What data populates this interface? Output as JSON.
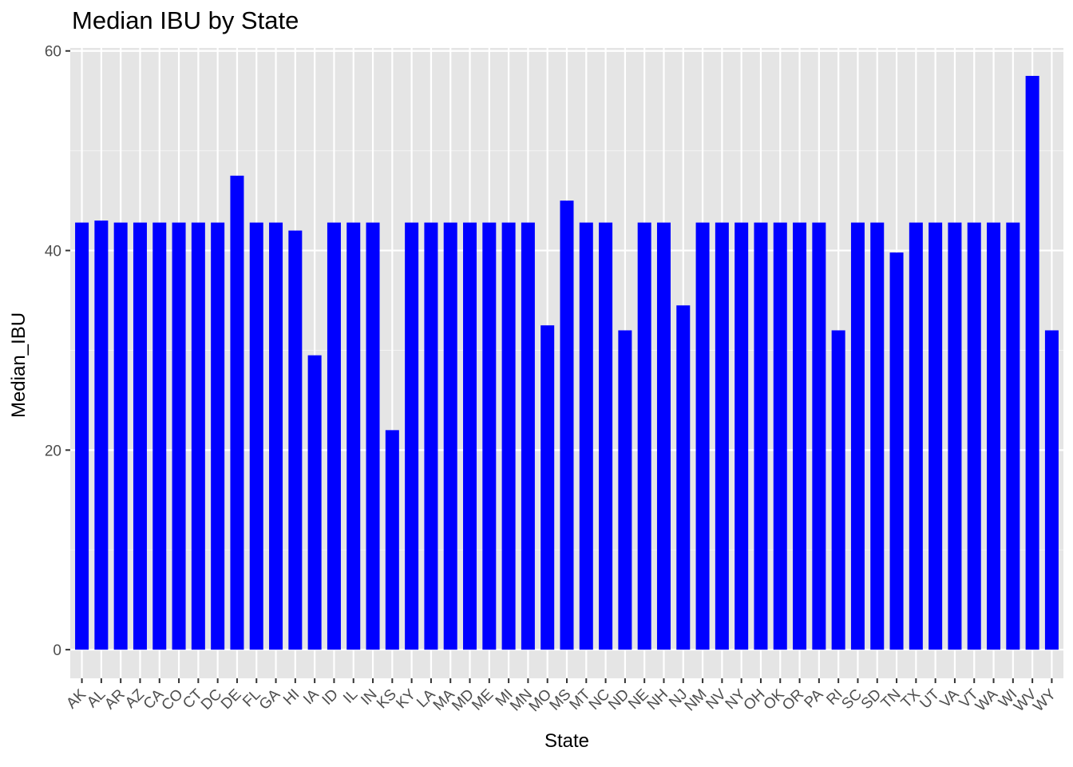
{
  "chart_data": {
    "type": "bar",
    "title": "Median IBU by State",
    "xlabel": "State",
    "ylabel": "Median_IBU",
    "ylim": [
      -2.87,
      60.3
    ],
    "yticks": [
      0,
      20,
      40,
      60
    ],
    "grid": true,
    "bar_color": "#0000FF",
    "panel_bg": "#E5E5E5",
    "categories": [
      "AK",
      "AL",
      "AR",
      "AZ",
      "CA",
      "CO",
      "CT",
      "DC",
      "DE",
      "FL",
      "GA",
      "HI",
      "IA",
      "ID",
      "IL",
      "IN",
      "KS",
      "KY",
      "LA",
      "MA",
      "MD",
      "ME",
      "MI",
      "MN",
      "MO",
      "MS",
      "MT",
      "NC",
      "ND",
      "NE",
      "NH",
      "NJ",
      "NM",
      "NV",
      "NY",
      "OH",
      "OK",
      "OR",
      "PA",
      "RI",
      "SC",
      "SD",
      "TN",
      "TX",
      "UT",
      "VA",
      "VT",
      "WA",
      "WI",
      "WV",
      "WY"
    ],
    "values": [
      42.8,
      43,
      42.8,
      42.8,
      42.8,
      42.8,
      42.8,
      42.8,
      47.5,
      42.8,
      42.8,
      42,
      29.5,
      42.8,
      42.8,
      42.8,
      22,
      42.8,
      42.8,
      42.8,
      42.8,
      42.8,
      42.8,
      42.8,
      32.5,
      45,
      42.8,
      42.8,
      32,
      42.8,
      42.8,
      34.5,
      42.8,
      42.8,
      42.8,
      42.8,
      42.8,
      42.8,
      42.8,
      32,
      42.8,
      42.8,
      39.8,
      42.8,
      42.8,
      42.8,
      42.8,
      42.8,
      42.8,
      57.5,
      32
    ]
  }
}
